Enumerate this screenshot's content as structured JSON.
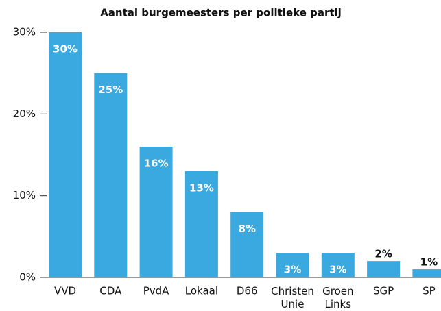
{
  "chart_data": {
    "type": "bar",
    "title": "Aantal burgemeesters per politieke partij",
    "categories": [
      "VVD",
      "CDA",
      "PvdA",
      "Lokaal",
      "D66",
      "Christen Unie",
      "Groen Links",
      "SGP",
      "SP"
    ],
    "values": [
      30,
      25,
      16,
      13,
      8,
      3,
      3,
      2,
      1
    ],
    "value_labels": [
      "30%",
      "25%",
      "16%",
      "13%",
      "8%",
      "3%",
      "3%",
      "2%",
      "1%"
    ],
    "color": "#3aa9e0",
    "ylim": [
      0,
      30
    ],
    "yticks": [
      {
        "value": 0,
        "label": "0%"
      },
      {
        "value": 10,
        "label": "10%"
      },
      {
        "value": 20,
        "label": "20%"
      },
      {
        "value": 30,
        "label": "30%"
      }
    ]
  }
}
